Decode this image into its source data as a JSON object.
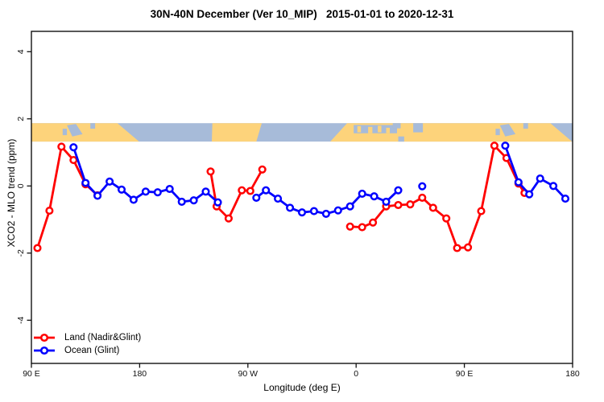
{
  "title": "30N-40N December (Ver 10_MIP)   2015-01-01 to 2020-12-31",
  "legend": {
    "items": [
      {
        "label": "Land (Nadir&Glint)",
        "color_key": "land_series"
      },
      {
        "label": "Ocean (Glint)",
        "color_key": "ocean_series"
      }
    ]
  },
  "colors": {
    "land_series": "#ff0000",
    "ocean_series": "#0000ff",
    "axis": "#111111",
    "map_land": "#fdd37b",
    "map_ocean": "#a7bbd9"
  },
  "chart_data": {
    "type": "line",
    "title": "30N-40N December (Ver 10_MIP)   2015-01-01 to 2020-12-31",
    "xlabel": "Longitude (deg E)",
    "ylabel": "XCO2 - MLO trend (ppm)",
    "grid": false,
    "legend_position": "bottom-left",
    "x_axis": {
      "min": 90,
      "max": 540,
      "note": "longitude axis wraps eastward from 90E through 180, 90W, 0, 90E to 180",
      "ticks": [
        {
          "v": 90,
          "label": "90 E"
        },
        {
          "v": 180,
          "label": "180"
        },
        {
          "v": 270,
          "label": "90 W"
        },
        {
          "v": 360,
          "label": "0"
        },
        {
          "v": 450,
          "label": "90 E"
        },
        {
          "v": 540,
          "label": "180"
        }
      ]
    },
    "y_axis": {
      "min": -5.3,
      "max": 4.6,
      "ticks": [
        {
          "v": -4,
          "label": "-4"
        },
        {
          "v": -2,
          "label": "-2"
        },
        {
          "v": 0,
          "label": "0"
        },
        {
          "v": 2,
          "label": "2"
        },
        {
          "v": 4,
          "label": "4"
        }
      ]
    },
    "series": [
      {
        "name": "Land (Nadir&Glint)",
        "color_key": "land_series",
        "segments": [
          [
            [
              95,
              -1.85
            ],
            [
              105,
              -0.74
            ],
            [
              115,
              1.17
            ],
            [
              125,
              0.77
            ],
            [
              135,
              0.05
            ],
            [
              145,
              -0.28
            ]
          ],
          [
            [
              239,
              0.43
            ],
            [
              244,
              -0.61
            ],
            [
              254,
              -0.97
            ],
            [
              265,
              -0.13
            ],
            [
              272,
              -0.15
            ],
            [
              282,
              0.49
            ]
          ],
          [
            [
              355,
              -1.21
            ],
            [
              365,
              -1.23
            ],
            [
              374,
              -1.09
            ],
            [
              385,
              -0.61
            ],
            [
              395,
              -0.57
            ],
            [
              405,
              -0.55
            ],
            [
              415,
              -0.35
            ],
            [
              424,
              -0.65
            ],
            [
              435,
              -0.97
            ],
            [
              444,
              -1.85
            ],
            [
              453,
              -1.83
            ],
            [
              464,
              -0.75
            ],
            [
              475,
              1.2
            ],
            [
              485,
              0.83
            ],
            [
              495,
              0.07
            ],
            [
              500,
              -0.21
            ]
          ]
        ]
      },
      {
        "name": "Ocean (Glint)",
        "color_key": "ocean_series",
        "segments": [
          [
            [
              125,
              1.15
            ],
            [
              135,
              0.09
            ],
            [
              145,
              -0.29
            ],
            [
              155,
              0.13
            ],
            [
              165,
              -0.11
            ],
            [
              175,
              -0.41
            ],
            [
              185,
              -0.17
            ],
            [
              195,
              -0.19
            ],
            [
              205,
              -0.09
            ],
            [
              215,
              -0.47
            ],
            [
              225,
              -0.43
            ],
            [
              235,
              -0.17
            ],
            [
              245,
              -0.49
            ]
          ],
          [
            [
              277,
              -0.35
            ],
            [
              285,
              -0.13
            ],
            [
              295,
              -0.38
            ],
            [
              305,
              -0.65
            ],
            [
              315,
              -0.79
            ],
            [
              325,
              -0.75
            ],
            [
              335,
              -0.83
            ],
            [
              345,
              -0.73
            ],
            [
              355,
              -0.61
            ],
            [
              365,
              -0.23
            ],
            [
              375,
              -0.31
            ],
            [
              385,
              -0.47
            ],
            [
              395,
              -0.13
            ]
          ],
          [
            [
              415,
              -0.01
            ]
          ],
          [
            [
              484,
              1.2
            ],
            [
              495,
              0.11
            ],
            [
              504,
              -0.25
            ],
            [
              513,
              0.22
            ],
            [
              524,
              0.0
            ],
            [
              534,
              -0.38
            ]
          ]
        ]
      }
    ],
    "map_band": {
      "description": "world-map strip of the 30N-40N latitude band drawn across the plot",
      "value_top": 1.87,
      "value_bottom": 1.32,
      "land_polygons": [
        [
          [
            90,
            0
          ],
          [
            161.5,
            0
          ],
          [
            179.5,
            1
          ],
          [
            90,
            1
          ]
        ],
        [
          [
            240.5,
            0
          ],
          [
            281.5,
            0
          ],
          [
            277,
            1
          ],
          [
            240,
            1
          ]
        ],
        [
          [
            352.5,
            0
          ],
          [
            521.5,
            0
          ],
          [
            539.5,
            1
          ],
          [
            338.5,
            1
          ]
        ]
      ],
      "ocean_patches": [
        [
          [
            116,
            0.3
          ],
          [
            119.5,
            0.3
          ],
          [
            119.5,
            0.65
          ],
          [
            116,
            0.65
          ]
        ],
        [
          [
            119.5,
            0.12
          ],
          [
            127,
            0.04
          ],
          [
            132.5,
            0.6
          ],
          [
            124,
            0.72
          ]
        ],
        [
          [
            139,
            0
          ],
          [
            143,
            0
          ],
          [
            143,
            0.3
          ],
          [
            139,
            0.3
          ]
        ],
        [
          [
            358,
            0.1
          ],
          [
            394,
            0.1
          ],
          [
            394,
            0.55
          ],
          [
            358,
            0.55
          ]
        ],
        [
          [
            390.5,
            0
          ],
          [
            397,
            0
          ],
          [
            397,
            0.28
          ],
          [
            390.5,
            0.28
          ]
        ],
        [
          [
            407.5,
            0
          ],
          [
            415.5,
            0
          ],
          [
            415.5,
            0.5
          ],
          [
            407.5,
            0.5
          ]
        ],
        [
          [
            395,
            0.72
          ],
          [
            400,
            0.72
          ],
          [
            400,
            1
          ],
          [
            395,
            1
          ]
        ],
        [
          [
            476,
            0.3
          ],
          [
            479.5,
            0.3
          ],
          [
            479.5,
            0.65
          ],
          [
            476,
            0.65
          ]
        ],
        [
          [
            479.5,
            0.12
          ],
          [
            487,
            0.04
          ],
          [
            492.5,
            0.6
          ],
          [
            484,
            0.72
          ]
        ],
        [
          [
            499,
            0
          ],
          [
            503,
            0
          ],
          [
            503,
            0.3
          ],
          [
            499,
            0.3
          ]
        ]
      ],
      "land_islands": [
        [
          [
            361,
            0.16
          ],
          [
            364,
            0.16
          ],
          [
            364,
            0.5
          ],
          [
            361,
            0.5
          ]
        ],
        [
          [
            370,
            0.2
          ],
          [
            373.5,
            0.2
          ],
          [
            373.5,
            0.55
          ],
          [
            370,
            0.55
          ]
        ],
        [
          [
            378,
            0.14
          ],
          [
            381,
            0.14
          ],
          [
            381,
            0.5
          ],
          [
            378,
            0.5
          ]
        ],
        [
          [
            385,
            0.25
          ],
          [
            388,
            0.25
          ],
          [
            388,
            0.55
          ],
          [
            385,
            0.55
          ]
        ]
      ]
    }
  }
}
